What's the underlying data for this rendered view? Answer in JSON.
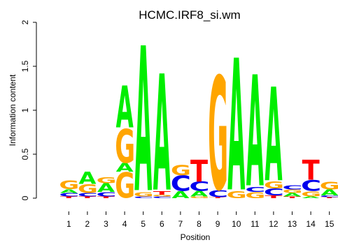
{
  "chart_data": {
    "type": "sequence-logo",
    "title": "HCMC.IRF8_si.wm",
    "xlabel": "Position",
    "ylabel": "Information content",
    "ylim": [
      0,
      2
    ],
    "yticks": [
      "0",
      "0.5",
      "1",
      "1.5",
      "2"
    ],
    "positions": [
      "1",
      "2",
      "3",
      "4",
      "5",
      "6",
      "7",
      "8",
      "9",
      "10",
      "11",
      "12",
      "13",
      "14",
      "15"
    ],
    "colors": {
      "A": "#00ee00",
      "C": "#0000ee",
      "G": "#ffa500",
      "T": "#ff0000"
    },
    "stacks": [
      [
        [
          "T",
          0.02
        ],
        [
          "C",
          0.04
        ],
        [
          "A",
          0.04
        ],
        [
          "G",
          0.1
        ]
      ],
      [
        [
          "T",
          0.02
        ],
        [
          "C",
          0.04
        ],
        [
          "G",
          0.1
        ],
        [
          "A",
          0.14
        ]
      ],
      [
        [
          "T",
          0.02
        ],
        [
          "C",
          0.05
        ],
        [
          "A",
          0.1
        ],
        [
          "G",
          0.07
        ]
      ],
      [
        [
          "G",
          0.3
        ],
        [
          "A",
          0.1
        ],
        [
          "G",
          0.4
        ],
        [
          "A",
          0.48
        ]
      ],
      [
        [
          "C",
          0.02
        ],
        [
          "G",
          0.05
        ],
        [
          "A",
          1.67
        ]
      ],
      [
        [
          "C",
          0.02
        ],
        [
          "G",
          0.02
        ],
        [
          "T",
          0.04
        ],
        [
          "A",
          1.34
        ]
      ],
      [
        [
          "A",
          0.08
        ],
        [
          "C",
          0.18
        ],
        [
          "G",
          0.12
        ]
      ],
      [
        [
          "G",
          0.02
        ],
        [
          "A",
          0.06
        ],
        [
          "C",
          0.11
        ],
        [
          "T",
          0.25
        ]
      ],
      [
        [
          "T",
          0.01
        ],
        [
          "C",
          0.08
        ],
        [
          "G",
          1.34
        ]
      ],
      [
        [
          "G",
          0.08
        ],
        [
          "A",
          1.52
        ]
      ],
      [
        [
          "G",
          0.07
        ],
        [
          "C",
          0.06
        ],
        [
          "A",
          1.28
        ]
      ],
      [
        [
          "T",
          0.03
        ],
        [
          "C",
          0.08
        ],
        [
          "G",
          0.08
        ],
        [
          "A",
          1.08
        ]
      ],
      [
        [
          "T",
          0.02
        ],
        [
          "A",
          0.04
        ],
        [
          "G",
          0.04
        ],
        [
          "C",
          0.05
        ]
      ],
      [
        [
          "A",
          0.02
        ],
        [
          "G",
          0.06
        ],
        [
          "C",
          0.13
        ],
        [
          "T",
          0.23
        ]
      ],
      [
        [
          "T",
          0.01
        ],
        [
          "C",
          0.02
        ],
        [
          "A",
          0.07
        ],
        [
          "G",
          0.09
        ]
      ]
    ]
  }
}
